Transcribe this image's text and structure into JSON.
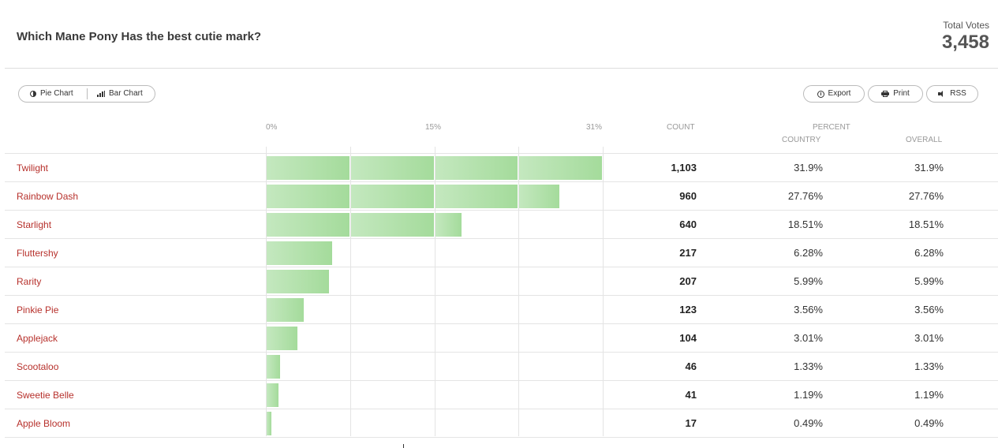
{
  "poll": {
    "question": "Which Mane Pony Has the best cutie mark?",
    "total_votes_label": "Total Votes",
    "total_votes": "3,458"
  },
  "toolbar": {
    "pie_chart_label": "Pie Chart",
    "bar_chart_label": "Bar Chart",
    "export_label": "Export",
    "print_label": "Print",
    "rss_label": "RSS",
    "icons": [
      "half-circle-icon",
      "bar-chart-icon",
      "download-icon",
      "printer-icon",
      "speaker-icon"
    ]
  },
  "columns": {
    "axis_ticks": [
      "0%",
      "15%",
      "31%"
    ],
    "count": "COUNT",
    "percent": "PERCENT",
    "country": "COUNTRY",
    "overall": "OVERALL"
  },
  "rows": [
    {
      "label": "Twilight",
      "count": "1,103",
      "country": "31.9%",
      "overall": "31.9%"
    },
    {
      "label": "Rainbow Dash",
      "count": "960",
      "country": "27.76%",
      "overall": "27.76%"
    },
    {
      "label": "Starlight",
      "count": "640",
      "country": "18.51%",
      "overall": "18.51%"
    },
    {
      "label": "Fluttershy",
      "count": "217",
      "country": "6.28%",
      "overall": "6.28%"
    },
    {
      "label": "Rarity",
      "count": "207",
      "country": "5.99%",
      "overall": "5.99%"
    },
    {
      "label": "Pinkie Pie",
      "count": "123",
      "country": "3.56%",
      "overall": "3.56%"
    },
    {
      "label": "Applejack",
      "count": "104",
      "country": "3.01%",
      "overall": "3.01%"
    },
    {
      "label": "Scootaloo",
      "count": "46",
      "country": "1.33%",
      "overall": "1.33%"
    },
    {
      "label": "Sweetie Belle",
      "count": "41",
      "country": "1.19%",
      "overall": "1.19%"
    },
    {
      "label": "Apple Bloom",
      "count": "17",
      "country": "0.49%",
      "overall": "0.49%"
    }
  ],
  "chart_data": {
    "type": "bar",
    "orientation": "horizontal",
    "title": "Which Mane Pony Has the best cutie mark?",
    "categories": [
      "Twilight",
      "Rainbow Dash",
      "Starlight",
      "Fluttershy",
      "Rarity",
      "Pinkie Pie",
      "Applejack",
      "Scootaloo",
      "Sweetie Belle",
      "Apple Bloom"
    ],
    "values": [
      31.9,
      27.76,
      18.51,
      6.28,
      5.99,
      3.56,
      3.01,
      1.33,
      1.19,
      0.49
    ],
    "counts": [
      1103,
      960,
      640,
      217,
      207,
      123,
      104,
      46,
      41,
      17
    ],
    "xlim": [
      0,
      31.9
    ],
    "x_ticks": [
      "0%",
      "15%",
      "31%"
    ],
    "grid": true,
    "colors": {
      "bar_start": "#c4e8bf",
      "bar_end": "#a4db9b",
      "label": "#b7312c"
    }
  }
}
